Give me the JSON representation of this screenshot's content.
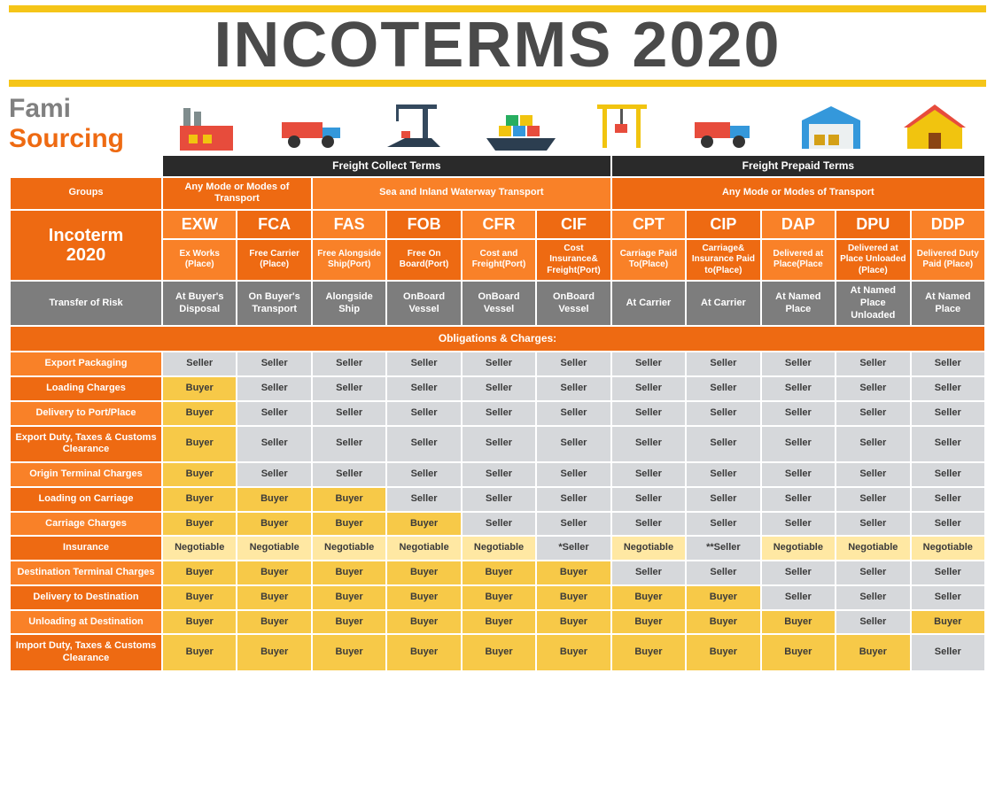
{
  "colors": {
    "title_text": "#4a4a4a",
    "title_border": "#f5c518",
    "logo_top": "#808080",
    "logo_bottom": "#ee6a12",
    "dark_header": "#2a2a2a",
    "orange_primary": "#ee6a12",
    "orange_alt": "#f98128",
    "grey_header": "#7d7d7d",
    "section_bar": "#ee6a12",
    "seller_cell_bg": "#d6d8db",
    "seller_cell_text": "#3a3a3a",
    "buyer_cell_bg": "#f7c948",
    "buyer_cell_text": "#3a3a3a",
    "neg_cell_bg": "#ffe8a3",
    "neg_cell_text": "#3a3a3a",
    "row_label_even": "#ee6a12",
    "row_label_odd": "#f98128",
    "white": "#ffffff"
  },
  "title": "INCOTERMS 2020",
  "logo": {
    "line1": "Fami",
    "line2": "Sourcing"
  },
  "icons": [
    "factory",
    "truck",
    "port-crane",
    "cargo-ship",
    "dock-crane",
    "delivery-truck",
    "warehouse",
    "house"
  ],
  "dark_headers": [
    {
      "label": "Freight Collect Terms",
      "span": 6
    },
    {
      "label": "Freight Prepaid Terms",
      "span": 5
    }
  ],
  "groups_label": "Groups",
  "groups": [
    {
      "label": "Any Mode or Modes of Transport",
      "span": 2
    },
    {
      "label": "Sea and Inland Waterway Transport",
      "span": 4
    },
    {
      "label": "Any Mode or Modes of Transport",
      "span": 5
    }
  ],
  "incoterm_header": "Incoterm 2020",
  "terms": [
    {
      "code": "EXW",
      "desc": "Ex Works (Place)"
    },
    {
      "code": "FCA",
      "desc": "Free Carrier (Place)"
    },
    {
      "code": "FAS",
      "desc": "Free Alongside Ship(Port)"
    },
    {
      "code": "FOB",
      "desc": "Free On Board(Port)"
    },
    {
      "code": "CFR",
      "desc": "Cost and Freight(Port)"
    },
    {
      "code": "CIF",
      "desc": "Cost Insurance& Freight(Port)"
    },
    {
      "code": "CPT",
      "desc": "Carriage Paid To(Place)"
    },
    {
      "code": "CIP",
      "desc": "Carriage& Insurance Paid to(Place)"
    },
    {
      "code": "DAP",
      "desc": "Delivered at Place(Place"
    },
    {
      "code": "DPU",
      "desc": "Delivered at Place Unloaded (Place)"
    },
    {
      "code": "DDP",
      "desc": "Delivered Duty Paid (Place)"
    }
  ],
  "risk_label": "Transfer of Risk",
  "risk": [
    "At Buyer's Disposal",
    "On Buyer's Transport",
    "Alongside Ship",
    "OnBoard Vessel",
    "OnBoard Vessel",
    "OnBoard Vessel",
    "At Carrier",
    "At Carrier",
    "At Named Place",
    "At Named Place Unloaded",
    "At Named Place"
  ],
  "section_title": "Obligations & Charges:",
  "value_labels": {
    "S": "Seller",
    "B": "Buyer",
    "N": "Negotiable",
    "S1": "*Seller",
    "S2": "**Seller"
  },
  "value_styles": {
    "S": {
      "bg": "#d6d8db",
      "text": "#3a3a3a"
    },
    "S1": {
      "bg": "#d6d8db",
      "text": "#3a3a3a"
    },
    "S2": {
      "bg": "#d6d8db",
      "text": "#3a3a3a"
    },
    "B": {
      "bg": "#f7c948",
      "text": "#3a3a3a"
    },
    "N": {
      "bg": "#ffe8a3",
      "text": "#3a3a3a"
    }
  },
  "rows": [
    {
      "label": "Export Packaging",
      "cells": [
        "S",
        "S",
        "S",
        "S",
        "S",
        "S",
        "S",
        "S",
        "S",
        "S",
        "S"
      ]
    },
    {
      "label": "Loading Charges",
      "cells": [
        "B",
        "S",
        "S",
        "S",
        "S",
        "S",
        "S",
        "S",
        "S",
        "S",
        "S"
      ]
    },
    {
      "label": "Delivery to Port/Place",
      "cells": [
        "B",
        "S",
        "S",
        "S",
        "S",
        "S",
        "S",
        "S",
        "S",
        "S",
        "S"
      ]
    },
    {
      "label": "Export Duty, Taxes & Customs Clearance",
      "cells": [
        "B",
        "S",
        "S",
        "S",
        "S",
        "S",
        "S",
        "S",
        "S",
        "S",
        "S"
      ]
    },
    {
      "label": "Origin Terminal Charges",
      "cells": [
        "B",
        "S",
        "S",
        "S",
        "S",
        "S",
        "S",
        "S",
        "S",
        "S",
        "S"
      ]
    },
    {
      "label": "Loading on Carriage",
      "cells": [
        "B",
        "B",
        "B",
        "S",
        "S",
        "S",
        "S",
        "S",
        "S",
        "S",
        "S"
      ]
    },
    {
      "label": "Carriage Charges",
      "cells": [
        "B",
        "B",
        "B",
        "B",
        "S",
        "S",
        "S",
        "S",
        "S",
        "S",
        "S"
      ]
    },
    {
      "label": "Insurance",
      "cells": [
        "N",
        "N",
        "N",
        "N",
        "N",
        "S1",
        "N",
        "S2",
        "N",
        "N",
        "N"
      ]
    },
    {
      "label": "Destination Terminal Charges",
      "cells": [
        "B",
        "B",
        "B",
        "B",
        "B",
        "B",
        "S",
        "S",
        "S",
        "S",
        "S"
      ]
    },
    {
      "label": "Delivery to Destination",
      "cells": [
        "B",
        "B",
        "B",
        "B",
        "B",
        "B",
        "B",
        "B",
        "S",
        "S",
        "S"
      ]
    },
    {
      "label": "Unloading at Destination",
      "cells": [
        "B",
        "B",
        "B",
        "B",
        "B",
        "B",
        "B",
        "B",
        "B",
        "S",
        "B"
      ]
    },
    {
      "label": "Import Duty,  Taxes & Customs Clearance",
      "cells": [
        "B",
        "B",
        "B",
        "B",
        "B",
        "B",
        "B",
        "B",
        "B",
        "B",
        "S"
      ]
    }
  ]
}
